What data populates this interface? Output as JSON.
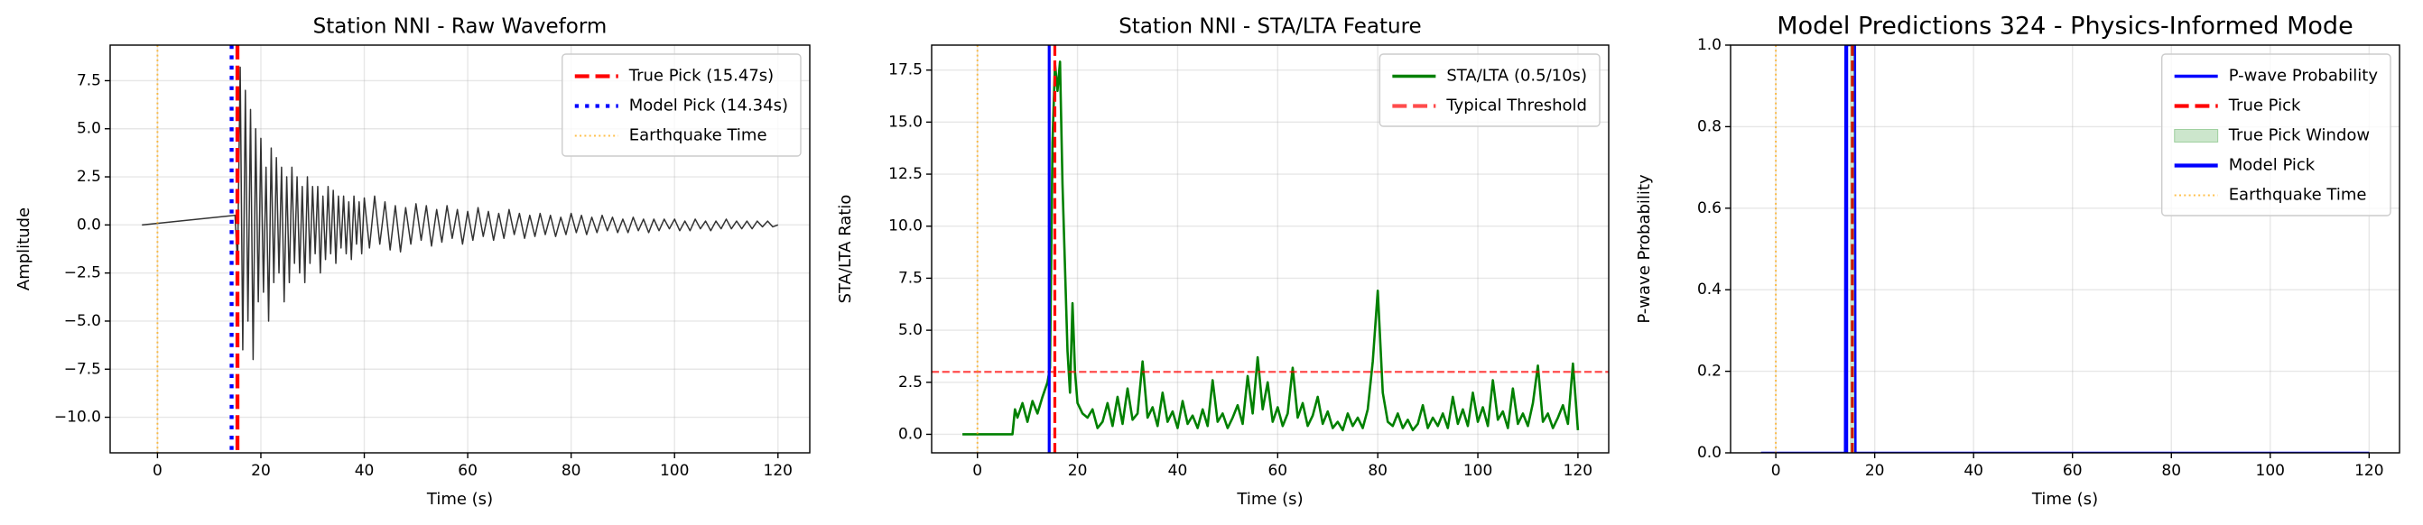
{
  "chart_data": [
    {
      "type": "line",
      "title": "Station NNI - Raw Waveform",
      "x_label": "Time (s)",
      "y_label": "Amplitude",
      "xlim": [
        -9.15,
        126.15
      ],
      "ylim": [
        -11.85,
        9.35
      ],
      "xticks": [
        0,
        20,
        40,
        60,
        80,
        100,
        120
      ],
      "yticks": [
        {
          "value": -10,
          "label": "−10.0"
        },
        {
          "value": -7.5,
          "label": "−7.5"
        },
        {
          "value": -5,
          "label": "−5.0"
        },
        {
          "value": -2.5,
          "label": "−2.5"
        },
        {
          "value": 0,
          "label": "0.0"
        },
        2.5,
        {
          "value": 5,
          "label": "5.0"
        },
        7.5
      ],
      "grid": true,
      "legend": "upper right",
      "series": [
        {
          "kind": "line",
          "color": "#000000",
          "alpha": 0.8,
          "linestyle": "-",
          "x": [
            -3,
            15,
            15.5,
            16,
            16.5,
            17,
            17.5,
            18,
            18.5,
            19,
            19.5,
            20,
            20.5,
            21,
            21.5,
            22,
            22.5,
            23,
            23.5,
            24,
            24.5,
            25,
            25.5,
            26,
            26.5,
            27,
            27.5,
            28,
            28.5,
            29,
            29.5,
            30,
            30.5,
            31,
            31.5,
            32,
            32.5,
            33,
            33.5,
            34,
            34.5,
            35,
            35.5,
            36,
            36.5,
            37,
            37.5,
            38,
            38.5,
            39,
            39.5,
            40,
            41,
            42,
            43,
            44,
            45,
            46,
            47,
            48,
            49,
            50,
            51,
            52,
            53,
            54,
            55,
            56,
            57,
            58,
            59,
            60,
            61,
            62,
            63,
            64,
            65,
            66,
            67,
            68,
            69,
            70,
            71,
            72,
            73,
            74,
            75,
            76,
            77,
            78,
            79,
            80,
            81,
            82,
            83,
            84,
            85,
            86,
            87,
            88,
            89,
            90,
            91,
            92,
            93,
            94,
            95,
            96,
            97,
            98,
            99,
            100,
            101,
            102,
            103,
            104,
            105,
            106,
            107,
            108,
            109,
            110,
            111,
            112,
            113,
            114,
            115,
            116,
            117,
            118,
            119,
            120
          ],
          "values": [
            0,
            0.5,
            -2,
            8.2,
            -6.5,
            7,
            -5,
            6,
            -7,
            5,
            -4,
            4.5,
            -3.5,
            3,
            -5,
            4,
            -3,
            3.5,
            -2.5,
            3,
            -4,
            2.5,
            -3,
            3,
            -2,
            2.5,
            -2.5,
            2,
            -3,
            2.5,
            -2,
            2,
            -1.5,
            2,
            -2.5,
            1.5,
            -1.8,
            2,
            -1.5,
            1.8,
            -2,
            1.5,
            -1.2,
            1.5,
            -1.5,
            1.2,
            -1.8,
            1.5,
            -1,
            1.2,
            -1.5,
            1.4,
            -1.2,
            1.5,
            -1,
            1.2,
            -1.3,
            1,
            -1.4,
            0.9,
            -1,
            1.1,
            -0.8,
            1,
            -1.1,
            0.8,
            -0.9,
            1,
            -0.7,
            0.8,
            -1,
            0.7,
            -0.8,
            0.9,
            -0.6,
            0.7,
            -0.8,
            0.6,
            -0.7,
            0.8,
            -0.5,
            0.6,
            -0.7,
            0.5,
            -0.6,
            0.6,
            -0.5,
            0.5,
            -0.6,
            0.4,
            -0.5,
            0.6,
            -0.4,
            0.5,
            -0.5,
            0.4,
            -0.4,
            0.5,
            -0.3,
            0.4,
            -0.4,
            0.3,
            -0.4,
            0.4,
            -0.3,
            0.3,
            -0.4,
            0.3,
            -0.3,
            0.3,
            -0.2,
            0.3,
            -0.3,
            0.2,
            -0.3,
            0.3,
            -0.2,
            0.2,
            -0.3,
            0.2,
            -0.2,
            0.3,
            -0.2,
            0.2,
            -0.2,
            0.2,
            -0.2,
            0.2,
            -0.1,
            0.2,
            -0.1,
            0
          ]
        },
        {
          "kind": "vline",
          "name": "True Pick (15.47s)",
          "x": 15.47,
          "color": "#ff0000",
          "linestyle": "--"
        },
        {
          "kind": "vline",
          "name": "Model Pick (14.34s)",
          "x": 14.34,
          "color": "#0000ff",
          "linestyle": ":"
        },
        {
          "kind": "vline",
          "name": "Earthquake Time",
          "x": 0,
          "color": "#ffa500",
          "alpha": 0.7,
          "linestyle": ":"
        }
      ]
    },
    {
      "type": "line",
      "title": "Station NNI - STA/LTA Feature",
      "x_label": "Time (s)",
      "y_label": "STA/LTA Ratio",
      "xlim": [
        -9.15,
        126.15
      ],
      "ylim": [
        -0.89,
        18.7
      ],
      "xticks": [
        0,
        20,
        40,
        60,
        80,
        100,
        120
      ],
      "yticks": [
        {
          "value": 0,
          "label": "0.0"
        },
        2.5,
        {
          "value": 5,
          "label": "5.0"
        },
        7.5,
        {
          "value": 10,
          "label": "10.0"
        },
        12.5,
        {
          "value": 15,
          "label": "15.0"
        },
        17.5
      ],
      "grid": true,
      "legend": "upper right",
      "series": [
        {
          "kind": "line",
          "name": "STA/LTA (0.5/10s)",
          "color": "#008000",
          "linestyle": "-",
          "x": [
            -3,
            7,
            7.5,
            8,
            9,
            10,
            11,
            12,
            13,
            14,
            14.5,
            15,
            15.5,
            16,
            16.5,
            17,
            17.5,
            18,
            18.5,
            19,
            19.5,
            20,
            21,
            22,
            23,
            24,
            25,
            26,
            27,
            28,
            29,
            30,
            31,
            32,
            33,
            34,
            35,
            36,
            37,
            38,
            39,
            40,
            41,
            42,
            43,
            44,
            45,
            46,
            47,
            48,
            49,
            50,
            51,
            52,
            53,
            54,
            55,
            56,
            57,
            58,
            59,
            60,
            61,
            62,
            63,
            64,
            65,
            66,
            67,
            68,
            69,
            70,
            71,
            72,
            73,
            74,
            75,
            76,
            77,
            78,
            79,
            80,
            81,
            82,
            83,
            84,
            85,
            86,
            87,
            88,
            89,
            90,
            91,
            92,
            93,
            94,
            95,
            96,
            97,
            98,
            99,
            100,
            101,
            102,
            103,
            104,
            105,
            106,
            107,
            108,
            109,
            110,
            111,
            112,
            113,
            114,
            115,
            116,
            117,
            118,
            119,
            120
          ],
          "values": [
            0,
            0,
            1.2,
            0.8,
            1.5,
            0.6,
            1.6,
            1,
            1.8,
            2.5,
            3.2,
            14,
            17.8,
            16.5,
            17.9,
            12,
            8,
            4,
            2,
            6.3,
            3,
            1.5,
            1,
            0.8,
            1.2,
            0.3,
            0.6,
            1.5,
            0.4,
            1.8,
            0.5,
            2.2,
            0.7,
            1,
            3.5,
            0.8,
            1.3,
            0.4,
            2,
            0.6,
            1.1,
            0.3,
            1.6,
            0.5,
            0.9,
            0.3,
            1.2,
            0.4,
            2.6,
            0.6,
            1,
            0.3,
            0.8,
            1.4,
            0.5,
            2.8,
            1,
            3.7,
            1.2,
            2.5,
            0.6,
            1.3,
            0.4,
            1,
            3.2,
            0.8,
            1.5,
            0.4,
            0.9,
            1.8,
            0.5,
            1.1,
            0.3,
            0.6,
            0.2,
            1,
            0.4,
            0.8,
            0.3,
            1.2,
            3.5,
            6.9,
            2,
            0.6,
            0.4,
            1,
            0.3,
            0.7,
            0.2,
            0.5,
            1.4,
            0.3,
            0.8,
            0.4,
            1,
            0.3,
            1.8,
            0.5,
            1.2,
            0.4,
            2,
            0.6,
            1.3,
            0.4,
            2.6,
            0.7,
            1.1,
            0.3,
            2.2,
            0.5,
            1,
            0.4,
            1.5,
            3.3,
            0.6,
            1,
            0.3,
            0.8,
            1.4,
            0.5,
            3.4,
            0.2
          ]
        },
        {
          "kind": "hline",
          "name": "Typical Threshold",
          "y": 3,
          "color": "#ff0000",
          "alpha": 0.7,
          "linestyle": "--"
        },
        {
          "kind": "vline",
          "x": 0,
          "color": "#ffa500",
          "alpha": 0.7,
          "linestyle": ":"
        },
        {
          "kind": "vline",
          "x": 14.34,
          "color": "#0000ff",
          "linestyle": "-"
        },
        {
          "kind": "vline",
          "x": 15.47,
          "color": "#ff0000",
          "linestyle": "--"
        }
      ]
    },
    {
      "type": "line",
      "title": "Model Predictions 324 - Physics-Informed Mode",
      "x_label": "Time (s)",
      "y_label": "P-wave Probability",
      "xlim": [
        -9.15,
        126.15
      ],
      "ylim": [
        0,
        1
      ],
      "xticks": [
        0,
        20,
        40,
        60,
        80,
        100,
        120
      ],
      "yticks": [
        {
          "value": 0,
          "label": "0.0"
        },
        0.2,
        0.4,
        0.6,
        0.8,
        {
          "value": 1,
          "label": "1.0"
        }
      ],
      "grid": true,
      "legend": "upper right",
      "series": [
        {
          "kind": "line",
          "name": "P-wave Probability",
          "color": "#0000ff",
          "linestyle": "-",
          "x": [
            -3,
            14,
            14.1,
            16,
            16.1,
            120
          ],
          "values": [
            0,
            0,
            1,
            1,
            0,
            0
          ]
        },
        {
          "kind": "vline",
          "name": "True Pick",
          "x": 15.47,
          "color": "#ff0000",
          "linestyle": "--"
        },
        {
          "kind": "span",
          "name": "True Pick Window",
          "x": [
            14.97,
            15.97
          ],
          "color": "#008000",
          "alpha": 0.2
        },
        {
          "kind": "vline",
          "name": "Model Pick",
          "x": 14.34,
          "color": "#0000ff",
          "linestyle": "-"
        },
        {
          "kind": "vline",
          "name": "Earthquake Time",
          "x": 0,
          "color": "#ffa500",
          "alpha": 0.7,
          "linestyle": ":"
        }
      ]
    }
  ]
}
